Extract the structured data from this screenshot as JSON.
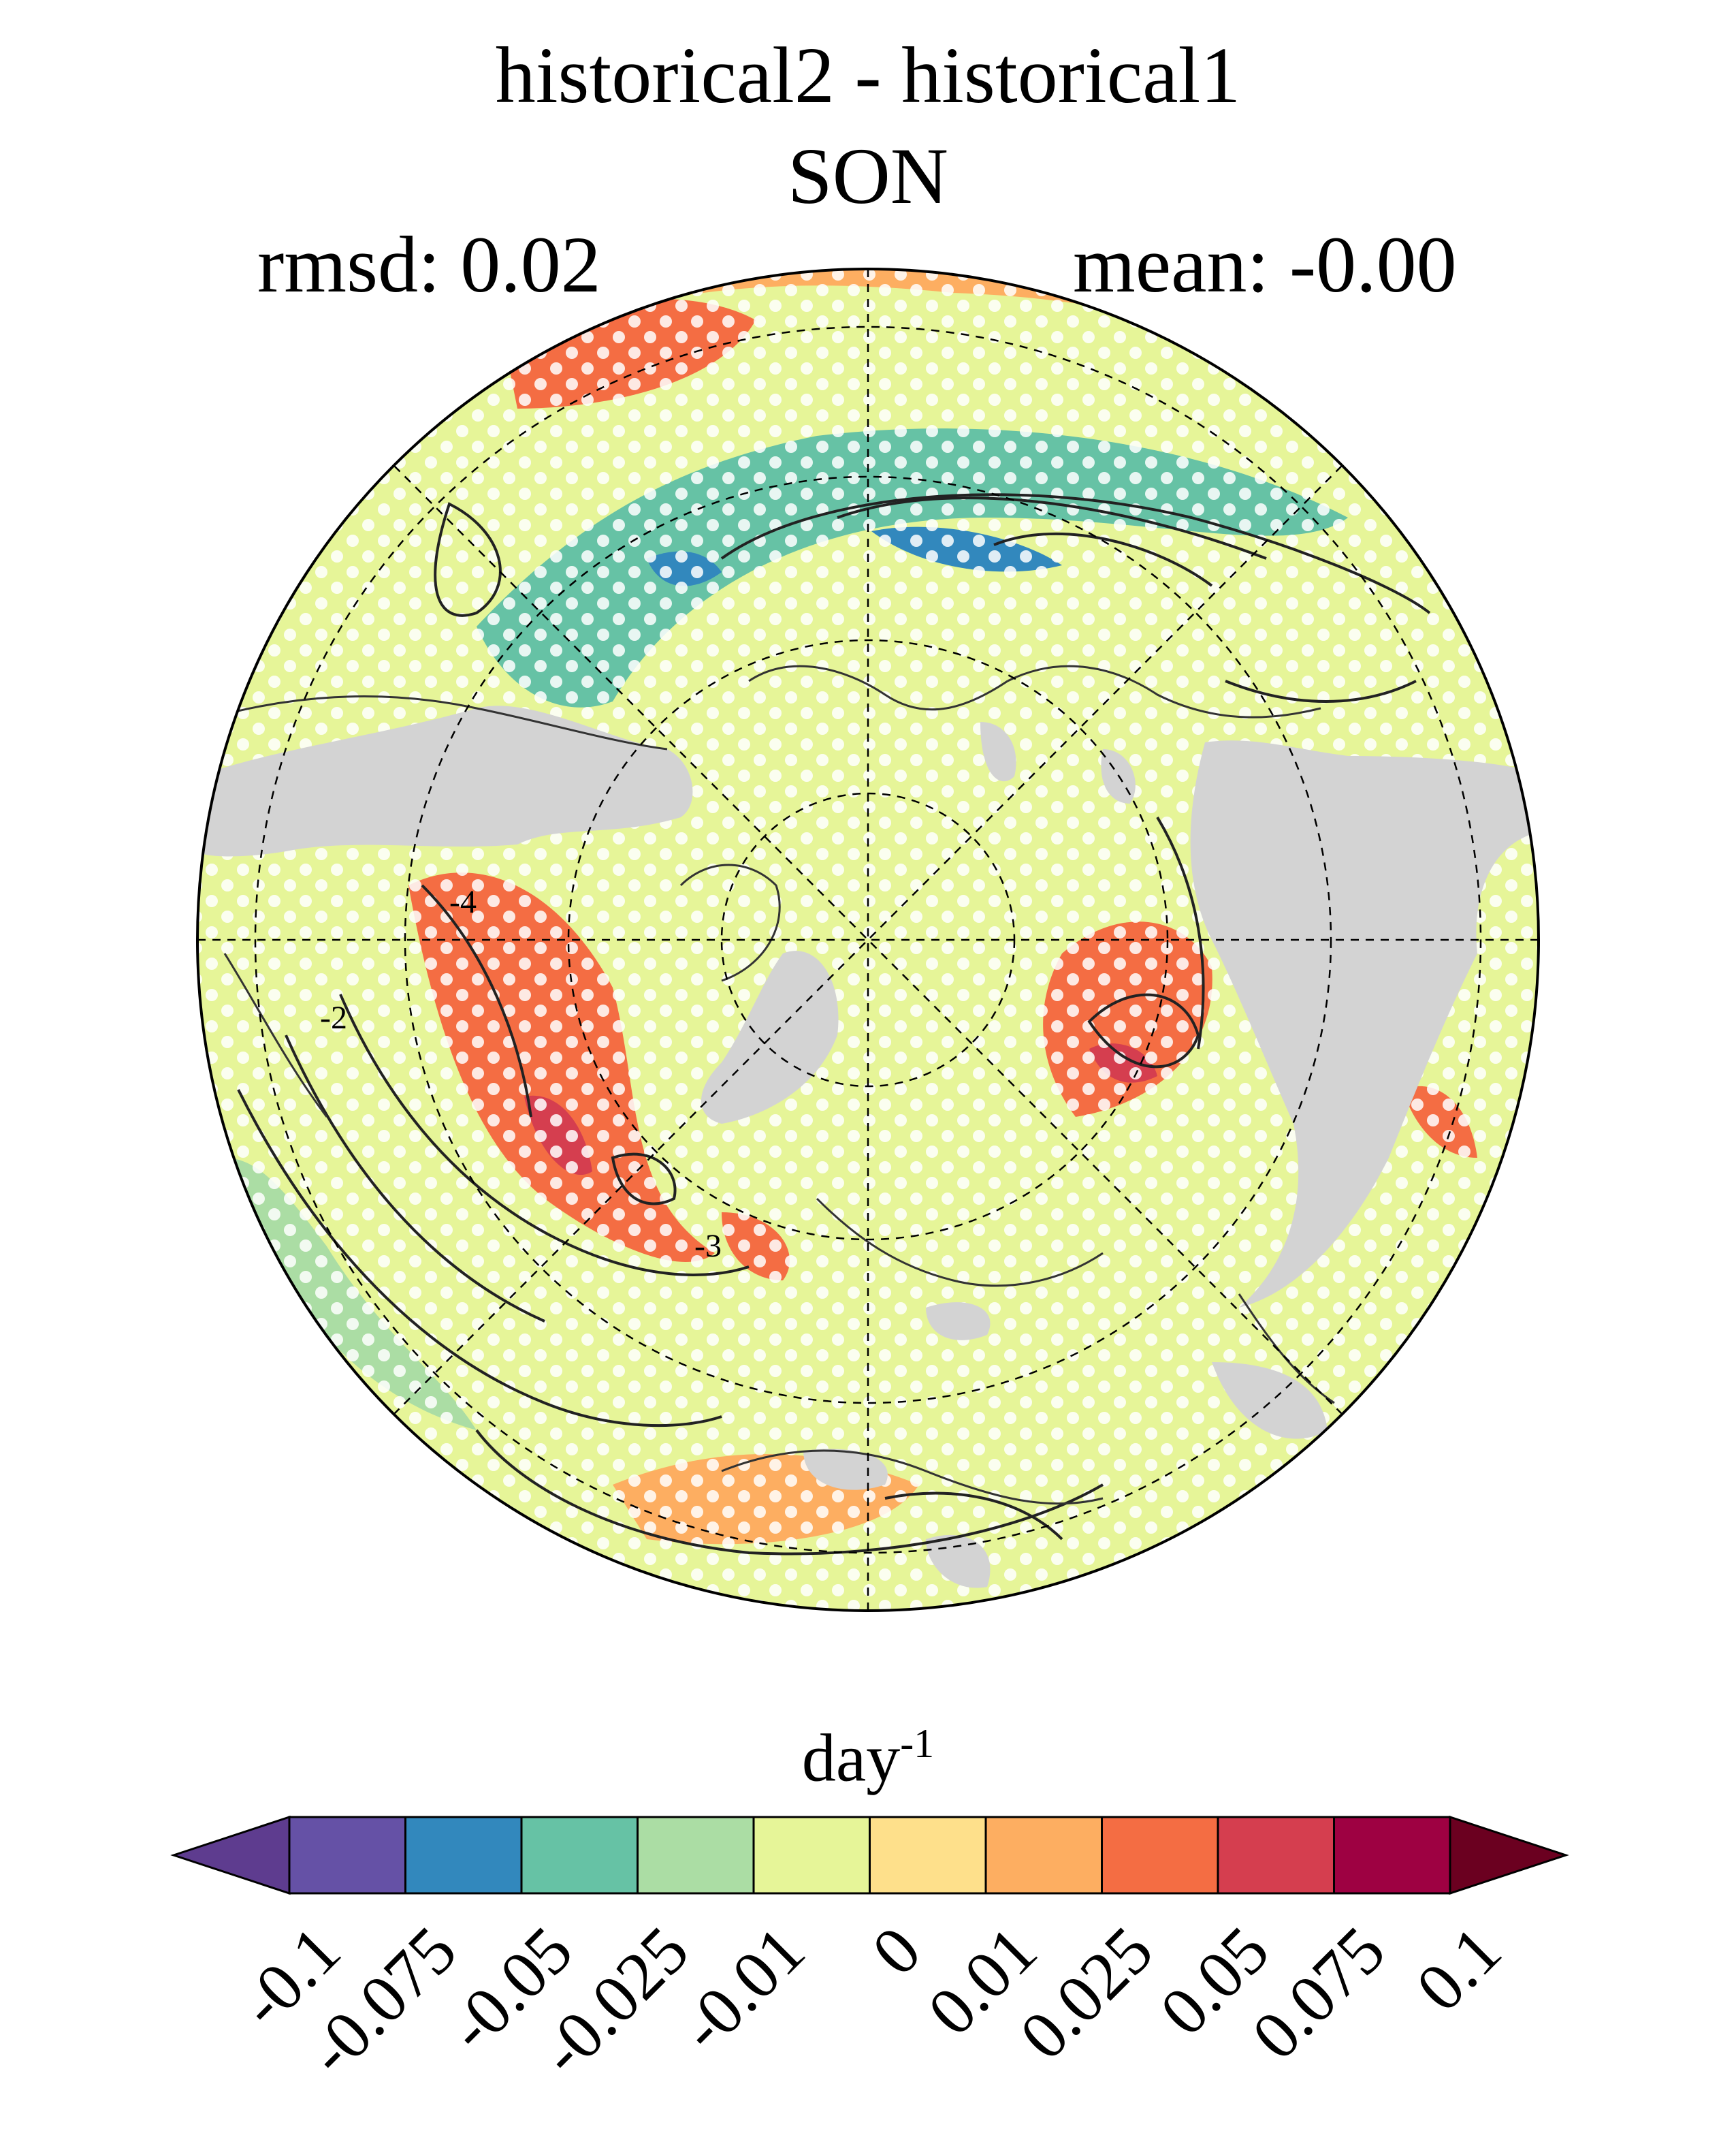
{
  "title": "historical2 - historical1",
  "season": "SON",
  "stats": {
    "rmsd_label": "rmsd: 0.02",
    "mean_label": "mean: -0.00"
  },
  "colorbar": {
    "units_base": "day",
    "units_exp": "-1",
    "ticks": [
      "-0.1",
      "-0.075",
      "-0.05",
      "-0.025",
      "-0.01",
      "0",
      "0.01",
      "0.025",
      "0.05",
      "0.075",
      "0.1"
    ],
    "colors": [
      "#5e3c8f",
      "#6551a6",
      "#3288bd",
      "#66c2a5",
      "#abdda4",
      "#e6f598",
      "#fee08b",
      "#fdae61",
      "#f46d43",
      "#d53e4f",
      "#9e0142",
      "#6b0020"
    ]
  },
  "map": {
    "projection": "north-polar-stereographic",
    "land_mask_color": "#d3d3d3",
    "stipple_color": "#ffffff",
    "contour_color": "#222222",
    "contour_labels": [
      "-4",
      "-2",
      "-3"
    ]
  }
}
